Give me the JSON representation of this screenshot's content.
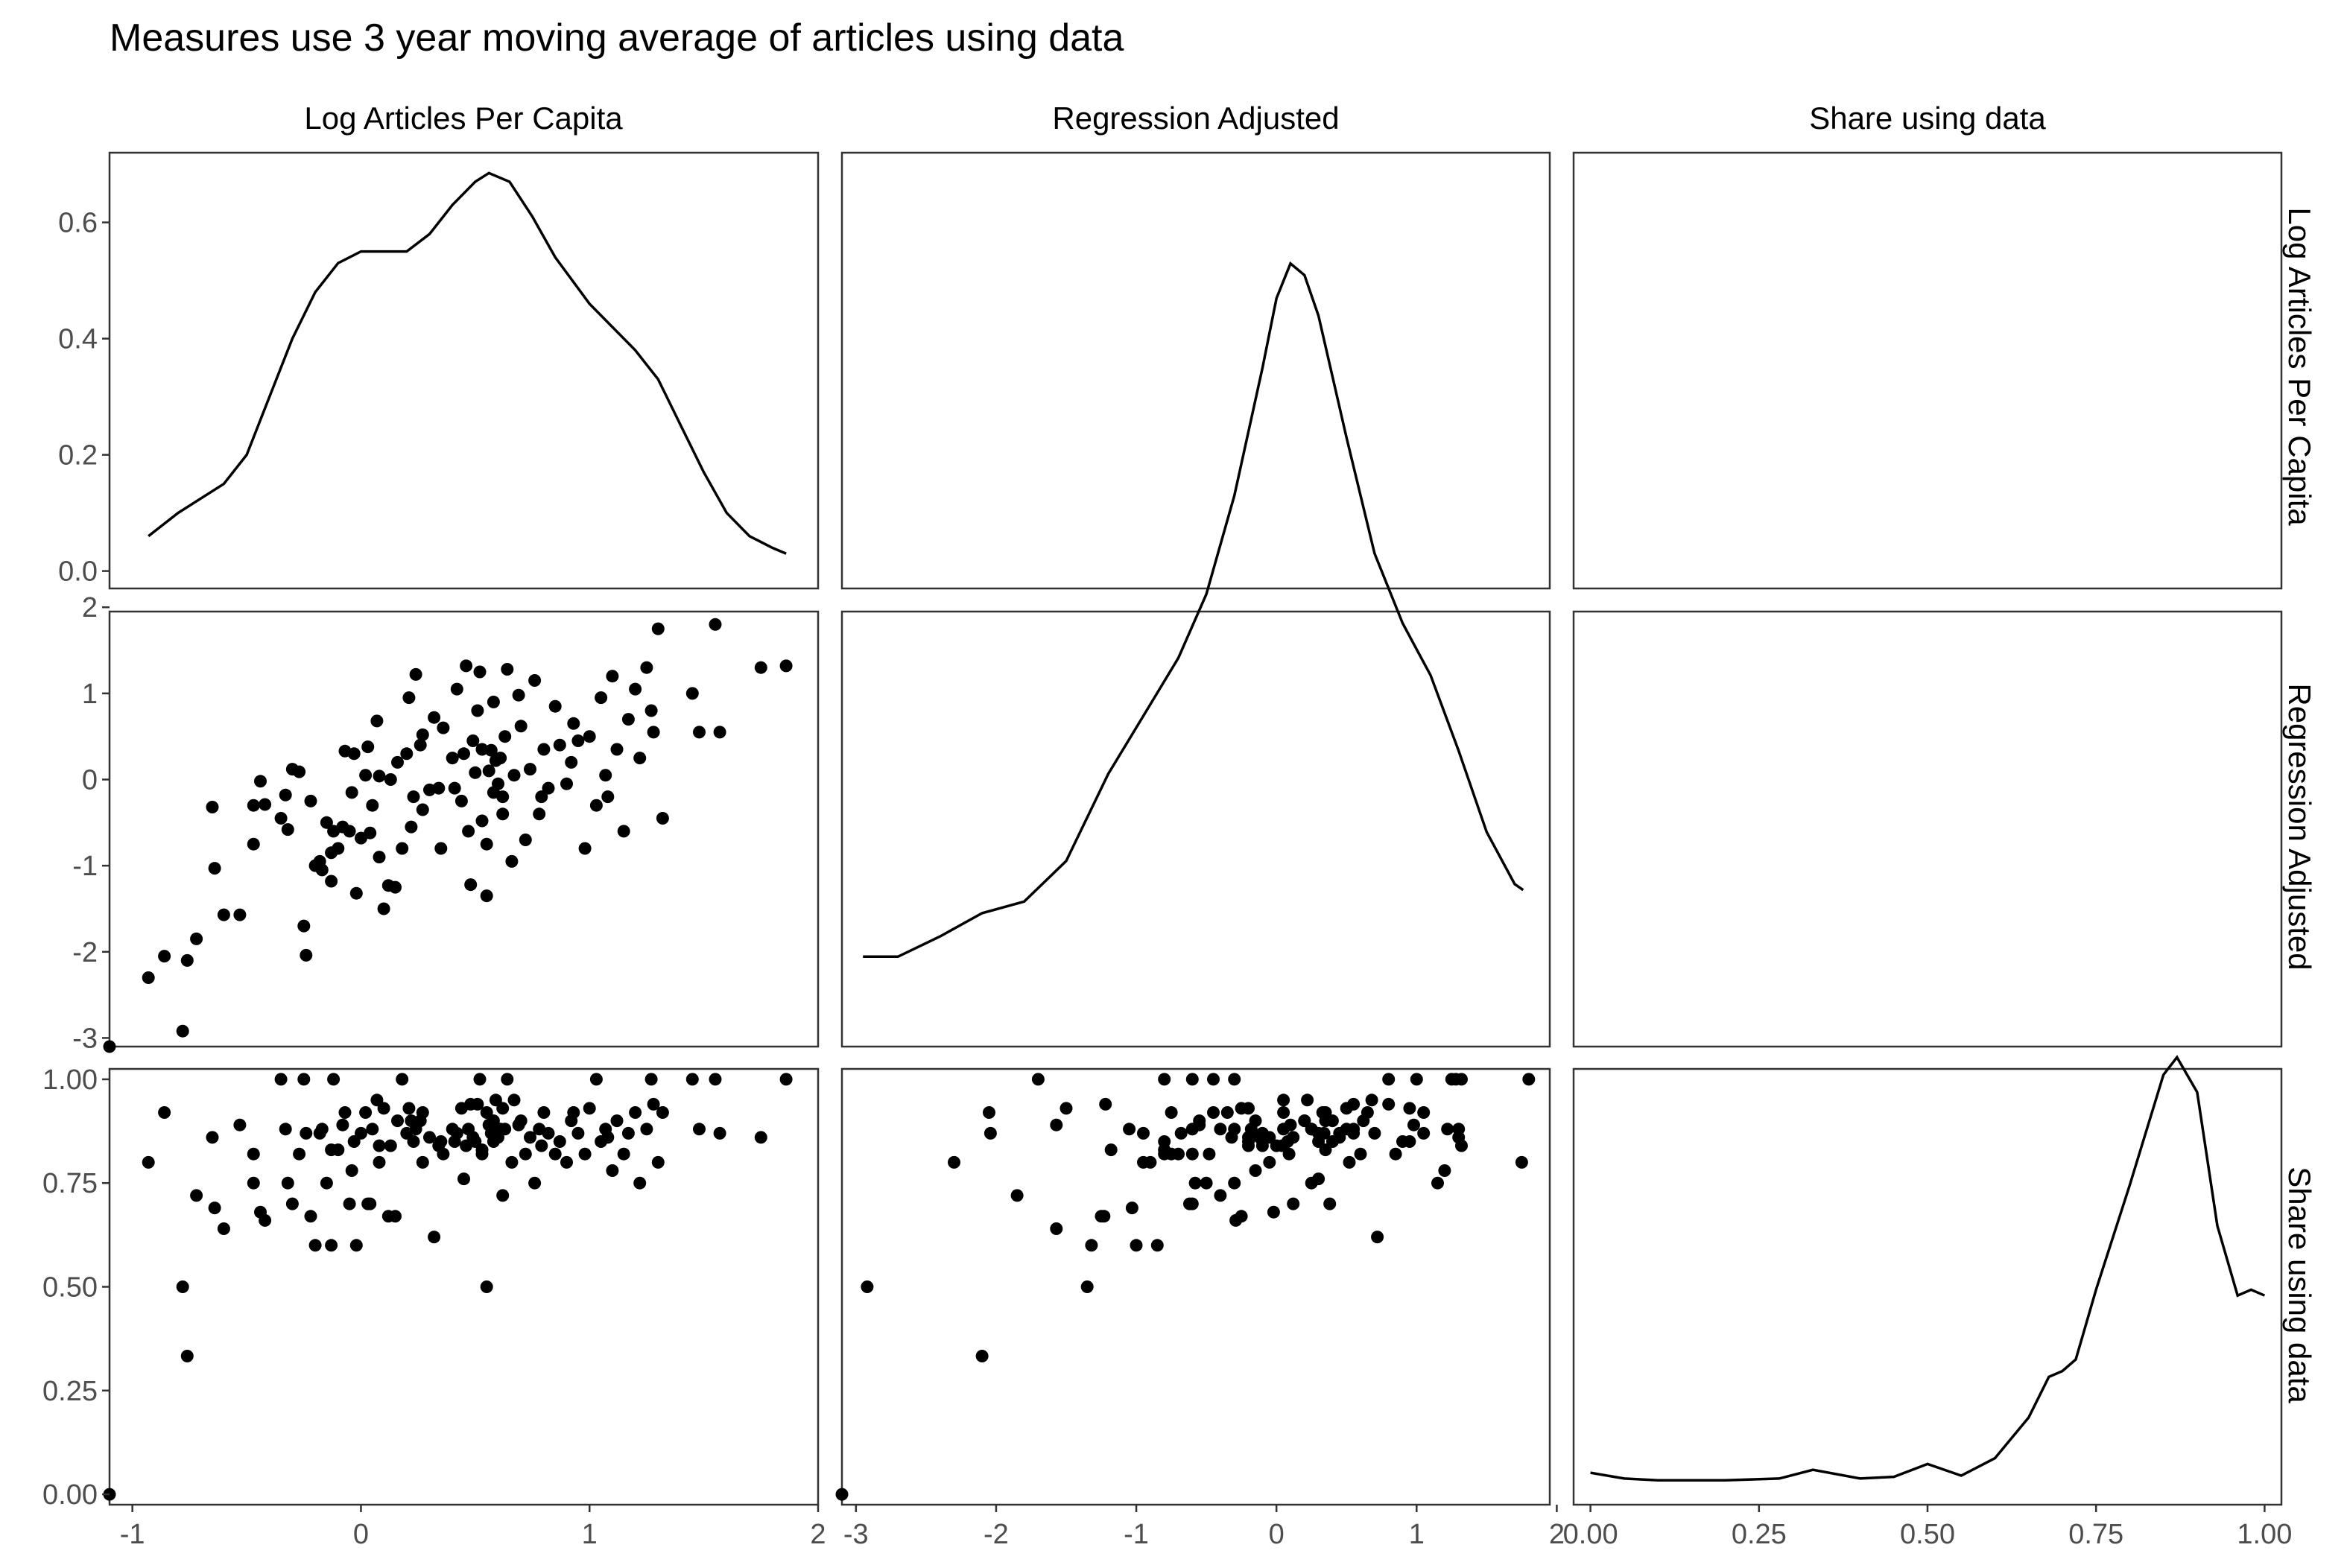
{
  "chart_data": {
    "type": "scatter",
    "title": "Measures use 3 year moving average of articles using data",
    "layout": "scatterplot-matrix",
    "variables": [
      "Log Articles Per Capita",
      "Regression Adjusted",
      "Share using data"
    ],
    "grid": false,
    "ranges": {
      "Log Articles Per Capita": [
        -1.1,
        2.0
      ],
      "Regression Adjusted": [
        -3.1,
        1.95
      ],
      "Share using data": [
        -0.025,
        1.025
      ],
      "density_y": [
        -0.03,
        0.72
      ]
    },
    "x_ticks": {
      "Log Articles Per Capita": [
        "-1",
        "0",
        "1",
        "2"
      ],
      "Regression Adjusted": [
        "-3",
        "-2",
        "-1",
        "0",
        "1",
        "2"
      ],
      "Share using data": [
        "0.00",
        "0.25",
        "0.50",
        "0.75",
        "1.00"
      ]
    },
    "y_ticks": {
      "density": [
        "0.0",
        "0.2",
        "0.4",
        "0.6"
      ],
      "Regression Adjusted": [
        "-3",
        "-2",
        "-1",
        "0",
        "1",
        "2"
      ],
      "Share using data": [
        "0.00",
        "0.25",
        "0.50",
        "0.75",
        "1.00"
      ]
    },
    "density_log_articles": [
      [
        -0.93,
        0.06
      ],
      [
        -0.8,
        0.1
      ],
      [
        -0.6,
        0.15
      ],
      [
        -0.5,
        0.2
      ],
      [
        -0.4,
        0.3
      ],
      [
        -0.3,
        0.4
      ],
      [
        -0.2,
        0.48
      ],
      [
        -0.1,
        0.53
      ],
      [
        0,
        0.55
      ],
      [
        0.1,
        0.55
      ],
      [
        0.2,
        0.55
      ],
      [
        0.3,
        0.58
      ],
      [
        0.4,
        0.63
      ],
      [
        0.5,
        0.67
      ],
      [
        0.56,
        0.685
      ],
      [
        0.65,
        0.67
      ],
      [
        0.75,
        0.61
      ],
      [
        0.85,
        0.54
      ],
      [
        1.0,
        0.46
      ],
      [
        1.1,
        0.42
      ],
      [
        1.2,
        0.38
      ],
      [
        1.3,
        0.33
      ],
      [
        1.4,
        0.25
      ],
      [
        1.5,
        0.17
      ],
      [
        1.6,
        0.1
      ],
      [
        1.7,
        0.06
      ],
      [
        1.8,
        0.04
      ],
      [
        1.86,
        0.03
      ]
    ],
    "density_regression_adjusted": [
      [
        -2.95,
        0.125
      ],
      [
        -2.7,
        0.125
      ],
      [
        -2.4,
        0.16
      ],
      [
        -2.1,
        0.2
      ],
      [
        -1.8,
        0.22
      ],
      [
        -1.5,
        0.29
      ],
      [
        -1.2,
        0.44
      ],
      [
        -0.9,
        0.56
      ],
      [
        -0.7,
        0.64
      ],
      [
        -0.5,
        0.75
      ],
      [
        -0.3,
        0.92
      ],
      [
        -0.1,
        1.14
      ],
      [
        0.0,
        1.26
      ],
      [
        0.1,
        1.32
      ],
      [
        0.2,
        1.3
      ],
      [
        0.3,
        1.23
      ],
      [
        0.5,
        1.02
      ],
      [
        0.7,
        0.82
      ],
      [
        0.9,
        0.7
      ],
      [
        1.1,
        0.61
      ],
      [
        1.3,
        0.48
      ],
      [
        1.5,
        0.34
      ],
      [
        1.7,
        0.25
      ],
      [
        1.76,
        0.24
      ]
    ],
    "density_share_using_data": [
      [
        0.0,
        0.025
      ],
      [
        0.05,
        0.015
      ],
      [
        0.1,
        0.012
      ],
      [
        0.2,
        0.012
      ],
      [
        0.28,
        0.015
      ],
      [
        0.33,
        0.03
      ],
      [
        0.4,
        0.015
      ],
      [
        0.45,
        0.018
      ],
      [
        0.5,
        0.04
      ],
      [
        0.55,
        0.02
      ],
      [
        0.6,
        0.05
      ],
      [
        0.65,
        0.12
      ],
      [
        0.68,
        0.19
      ],
      [
        0.7,
        0.2
      ],
      [
        0.72,
        0.22
      ],
      [
        0.75,
        0.34
      ],
      [
        0.8,
        0.52
      ],
      [
        0.85,
        0.71
      ],
      [
        0.87,
        0.74
      ],
      [
        0.9,
        0.68
      ],
      [
        0.93,
        0.45
      ],
      [
        0.96,
        0.33
      ],
      [
        0.98,
        0.34
      ],
      [
        1.0,
        0.33
      ]
    ],
    "points": [
      {
        "log": -1.1,
        "reg": -3.1,
        "share": 0.0
      },
      {
        "log": -0.93,
        "reg": -2.3,
        "share": 0.8
      },
      {
        "log": -0.86,
        "reg": -2.05,
        "share": 0.92
      },
      {
        "log": -0.78,
        "reg": -2.92,
        "share": 0.5
      },
      {
        "log": -0.76,
        "reg": -2.1,
        "share": 0.333
      },
      {
        "log": -0.72,
        "reg": -1.85,
        "share": 0.72
      },
      {
        "log": -0.65,
        "reg": -0.32,
        "share": 0.86
      },
      {
        "log": -0.64,
        "reg": -1.03,
        "share": 0.69
      },
      {
        "log": -0.6,
        "reg": -1.57,
        "share": 0.64
      },
      {
        "log": -0.53,
        "reg": -1.57,
        "share": 0.89
      },
      {
        "log": -0.47,
        "reg": -0.3,
        "share": 0.75
      },
      {
        "log": -0.47,
        "reg": -0.75,
        "share": 0.82
      },
      {
        "log": -0.44,
        "reg": -0.02,
        "share": 0.68
      },
      {
        "log": -0.42,
        "reg": -0.29,
        "share": 0.66
      },
      {
        "log": -0.35,
        "reg": -0.45,
        "share": 1.0
      },
      {
        "log": -0.32,
        "reg": -0.58,
        "share": 0.75
      },
      {
        "log": -0.3,
        "reg": 0.12,
        "share": 0.7
      },
      {
        "log": -0.27,
        "reg": 0.09,
        "share": 0.82
      },
      {
        "log": -0.25,
        "reg": -1.7,
        "share": 1.0
      },
      {
        "log": -0.24,
        "reg": -2.04,
        "share": 0.87
      },
      {
        "log": -0.22,
        "reg": -0.25,
        "share": 0.67
      },
      {
        "log": -0.2,
        "reg": -1.0,
        "share": 0.6
      },
      {
        "log": -0.18,
        "reg": -0.95,
        "share": 0.87
      },
      {
        "log": -0.17,
        "reg": -1.05,
        "share": 0.88
      },
      {
        "log": -0.15,
        "reg": -0.5,
        "share": 0.75
      },
      {
        "log": -0.13,
        "reg": -1.18,
        "share": 0.83
      },
      {
        "log": -0.12,
        "reg": -0.6,
        "share": 1.0
      },
      {
        "log": -0.1,
        "reg": -0.8,
        "share": 0.83
      },
      {
        "log": -0.08,
        "reg": -0.55,
        "share": 0.89
      },
      {
        "log": -0.07,
        "reg": 0.33,
        "share": 0.92
      },
      {
        "log": -0.05,
        "reg": -0.6,
        "share": 0.7
      },
      {
        "log": -0.04,
        "reg": -0.15,
        "share": 0.78
      },
      {
        "log": -0.03,
        "reg": 0.3,
        "share": 0.85
      },
      {
        "log": -0.02,
        "reg": -1.32,
        "share": 0.6
      },
      {
        "log": 0.0,
        "reg": -0.68,
        "share": 0.87
      },
      {
        "log": 0.02,
        "reg": 0.05,
        "share": 0.92
      },
      {
        "log": 0.03,
        "reg": 0.38,
        "share": 0.7
      },
      {
        "log": 0.05,
        "reg": -0.3,
        "share": 0.88
      },
      {
        "log": 0.07,
        "reg": 0.68,
        "share": 0.95
      },
      {
        "log": 0.08,
        "reg": 0.04,
        "share": 0.84
      },
      {
        "log": 0.1,
        "reg": -1.5,
        "share": 0.93
      },
      {
        "log": 0.12,
        "reg": -1.23,
        "share": 0.67
      },
      {
        "log": 0.13,
        "reg": 0.0,
        "share": 0.84
      },
      {
        "log": 0.15,
        "reg": -1.25,
        "share": 0.67
      },
      {
        "log": 0.16,
        "reg": 0.2,
        "share": 0.9
      },
      {
        "log": 0.18,
        "reg": -0.8,
        "share": 1.0
      },
      {
        "log": 0.2,
        "reg": 0.3,
        "share": 0.87
      },
      {
        "log": 0.21,
        "reg": 0.95,
        "share": 0.93
      },
      {
        "log": 0.23,
        "reg": -0.2,
        "share": 0.85
      },
      {
        "log": 0.24,
        "reg": 1.22,
        "share": 0.88
      },
      {
        "log": 0.26,
        "reg": 0.4,
        "share": 0.9
      },
      {
        "log": 0.27,
        "reg": -0.35,
        "share": 0.92
      },
      {
        "log": 0.3,
        "reg": -0.12,
        "share": 0.86
      },
      {
        "log": 0.32,
        "reg": 0.72,
        "share": 0.62
      },
      {
        "log": 0.34,
        "reg": -0.1,
        "share": 0.84
      },
      {
        "log": 0.35,
        "reg": -0.8,
        "share": 0.85
      },
      {
        "log": 0.4,
        "reg": 0.25,
        "share": 0.88
      },
      {
        "log": 0.42,
        "reg": 1.05,
        "share": 0.87
      },
      {
        "log": 0.44,
        "reg": -0.25,
        "share": 0.93
      },
      {
        "log": 0.46,
        "reg": 1.32,
        "share": 0.84
      },
      {
        "log": 0.48,
        "reg": -1.22,
        "share": 0.94
      },
      {
        "log": 0.5,
        "reg": 0.08,
        "share": 0.85
      },
      {
        "log": 0.51,
        "reg": 0.8,
        "share": 0.94
      },
      {
        "log": 0.53,
        "reg": -0.48,
        "share": 0.82
      },
      {
        "log": 0.55,
        "reg": -0.75,
        "share": 0.92
      },
      {
        "log": 0.57,
        "reg": 0.34,
        "share": 0.87
      },
      {
        "log": 0.58,
        "reg": 0.9,
        "share": 0.85
      },
      {
        "log": 0.6,
        "reg": -0.05,
        "share": 0.86
      },
      {
        "log": 0.62,
        "reg": -0.2,
        "share": 0.93
      },
      {
        "log": 0.63,
        "reg": 0.5,
        "share": 0.88
      },
      {
        "log": 0.64,
        "reg": 1.28,
        "share": 1.0
      },
      {
        "log": 0.66,
        "reg": -0.95,
        "share": 0.8
      },
      {
        "log": 0.67,
        "reg": 0.05,
        "share": 0.95
      },
      {
        "log": 0.7,
        "reg": 0.62,
        "share": 0.9
      },
      {
        "log": 0.72,
        "reg": -0.7,
        "share": 0.82
      },
      {
        "log": 0.74,
        "reg": 0.12,
        "share": 0.86
      },
      {
        "log": 0.76,
        "reg": 1.15,
        "share": 0.75
      },
      {
        "log": 0.78,
        "reg": -0.4,
        "share": 0.88
      },
      {
        "log": 0.8,
        "reg": 0.35,
        "share": 0.92
      },
      {
        "log": 0.82,
        "reg": -0.1,
        "share": 0.87
      },
      {
        "log": 0.85,
        "reg": 0.85,
        "share": 0.82
      },
      {
        "log": 0.87,
        "reg": 0.4,
        "share": 0.85
      },
      {
        "log": 0.9,
        "reg": -0.05,
        "share": 0.8
      },
      {
        "log": 0.92,
        "reg": 0.2,
        "share": 0.9
      },
      {
        "log": 0.95,
        "reg": 0.45,
        "share": 0.87
      },
      {
        "log": 0.98,
        "reg": -0.8,
        "share": 0.82
      },
      {
        "log": 1.0,
        "reg": 0.5,
        "share": 0.93
      },
      {
        "log": 1.03,
        "reg": -0.3,
        "share": 1.0
      },
      {
        "log": 1.05,
        "reg": 0.95,
        "share": 0.85
      },
      {
        "log": 1.07,
        "reg": 0.05,
        "share": 0.88
      },
      {
        "log": 1.1,
        "reg": 1.2,
        "share": 0.78
      },
      {
        "log": 1.12,
        "reg": 0.35,
        "share": 0.9
      },
      {
        "log": 1.15,
        "reg": -0.6,
        "share": 0.82
      },
      {
        "log": 1.17,
        "reg": 0.7,
        "share": 0.87
      },
      {
        "log": 1.2,
        "reg": 1.05,
        "share": 0.92
      },
      {
        "log": 1.22,
        "reg": 0.25,
        "share": 0.75
      },
      {
        "log": 1.25,
        "reg": 1.3,
        "share": 0.88
      },
      {
        "log": 1.27,
        "reg": 0.8,
        "share": 1.0
      },
      {
        "log": 1.3,
        "reg": 1.75,
        "share": 0.8
      },
      {
        "log": 1.32,
        "reg": -0.45,
        "share": 0.92
      },
      {
        "log": -0.33,
        "reg": -0.18,
        "share": 0.88
      },
      {
        "log": 0.08,
        "reg": -0.9,
        "share": 0.8
      },
      {
        "log": 0.22,
        "reg": -0.55,
        "share": 0.9
      },
      {
        "log": 0.36,
        "reg": 0.6,
        "share": 0.82
      },
      {
        "log": 0.47,
        "reg": -0.6,
        "share": 0.88
      },
      {
        "log": 0.59,
        "reg": 0.22,
        "share": 0.95
      },
      {
        "log": 0.69,
        "reg": 0.98,
        "share": 0.89
      },
      {
        "log": 0.79,
        "reg": -0.2,
        "share": 0.84
      },
      {
        "log": 0.93,
        "reg": 0.65,
        "share": 0.92
      },
      {
        "log": 1.08,
        "reg": -0.2,
        "share": 0.86
      },
      {
        "log": 1.28,
        "reg": 0.55,
        "share": 0.94
      },
      {
        "log": 1.45,
        "reg": 1.0,
        "share": 1.0
      },
      {
        "log": 1.48,
        "reg": 0.55,
        "share": 0.88
      },
      {
        "log": 1.55,
        "reg": 1.8,
        "share": 1.0
      },
      {
        "log": 1.57,
        "reg": 0.55,
        "share": 0.87
      },
      {
        "log": 1.75,
        "reg": 1.3,
        "share": 0.86
      },
      {
        "log": 1.86,
        "reg": 1.32,
        "share": 1.0
      },
      {
        "log": 0.55,
        "reg": -1.35,
        "share": 0.5
      },
      {
        "log": -0.13,
        "reg": -0.85,
        "share": 0.6
      },
      {
        "log": 0.27,
        "reg": 0.52,
        "share": 0.8
      },
      {
        "log": 0.52,
        "reg": 1.25,
        "share": 1.0
      },
      {
        "log": 0.62,
        "reg": -0.4,
        "share": 0.72
      },
      {
        "log": 0.45,
        "reg": 0.3,
        "share": 0.76
      },
      {
        "log": 0.04,
        "reg": -0.62,
        "share": 0.7
      },
      {
        "log": 0.56,
        "reg": 0.1,
        "share": 0.89
      },
      {
        "log": 0.58,
        "reg": -0.15,
        "share": 0.9
      },
      {
        "log": 0.49,
        "reg": 0.45,
        "share": 0.86
      },
      {
        "log": 0.53,
        "reg": 0.35,
        "share": 0.83
      },
      {
        "log": 0.41,
        "reg": -0.1,
        "share": 0.85
      },
      {
        "log": 0.61,
        "reg": 0.25,
        "share": 0.88
      }
    ]
  }
}
